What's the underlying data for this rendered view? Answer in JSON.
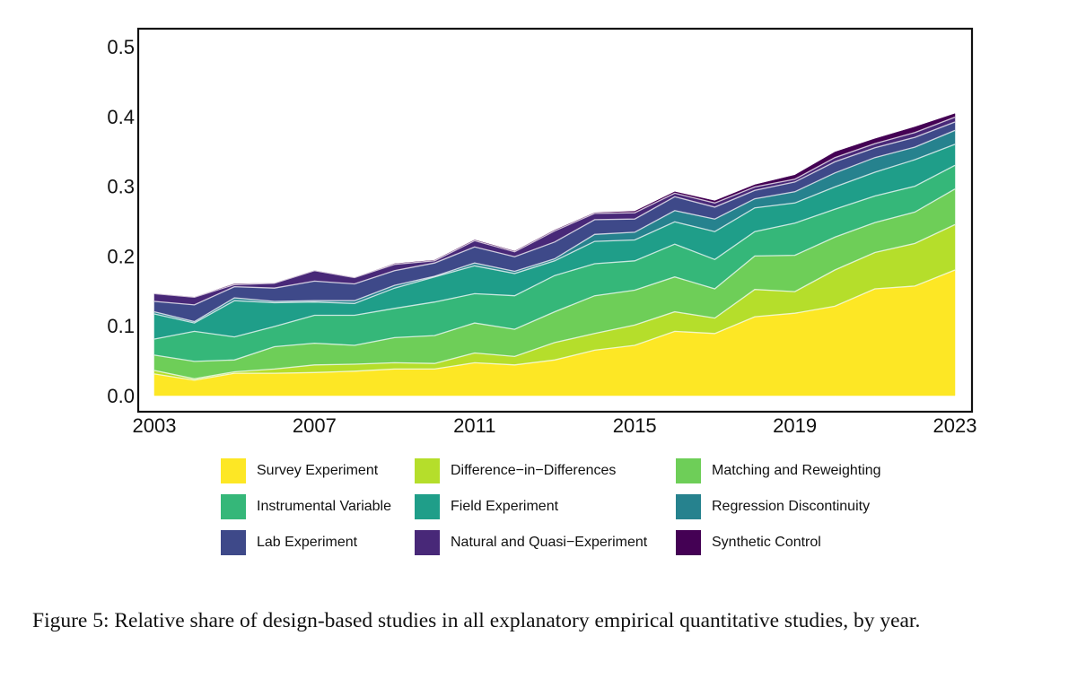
{
  "chart_data": {
    "type": "area",
    "stacked": true,
    "title": "",
    "xlabel": "",
    "ylabel": "",
    "x": [
      2003,
      2004,
      2005,
      2006,
      2007,
      2008,
      2009,
      2010,
      2011,
      2012,
      2013,
      2014,
      2015,
      2016,
      2017,
      2018,
      2019,
      2020,
      2021,
      2022,
      2023
    ],
    "xlim": [
      2003,
      2023
    ],
    "ylim": [
      0,
      0.5
    ],
    "x_ticks": [
      2003,
      2007,
      2011,
      2015,
      2019,
      2023
    ],
    "x_tick_labels": [
      "2003",
      "2007",
      "2011",
      "2015",
      "2019",
      "2023"
    ],
    "y_ticks": [
      0.0,
      0.1,
      0.2,
      0.3,
      0.4,
      0.5
    ],
    "y_tick_labels": [
      "0.0",
      "0.1",
      "0.2",
      "0.3",
      "0.4",
      "0.5"
    ],
    "grid": false,
    "legend_position": "bottom",
    "series": [
      {
        "name": "Survey Experiment",
        "color": "#FDE725",
        "values": [
          0.031,
          0.022,
          0.032,
          0.032,
          0.033,
          0.035,
          0.038,
          0.038,
          0.047,
          0.044,
          0.051,
          0.065,
          0.072,
          0.092,
          0.089,
          0.113,
          0.118,
          0.128,
          0.153,
          0.157,
          0.18
        ]
      },
      {
        "name": "Difference-in-Differences",
        "color": "#B5DE2B",
        "values": [
          0.005,
          0.002,
          0.002,
          0.006,
          0.011,
          0.01,
          0.009,
          0.008,
          0.014,
          0.012,
          0.025,
          0.024,
          0.029,
          0.028,
          0.022,
          0.039,
          0.031,
          0.052,
          0.052,
          0.061,
          0.065
        ]
      },
      {
        "name": "Matching and Reweighting",
        "color": "#6ECE58",
        "values": [
          0.022,
          0.025,
          0.017,
          0.032,
          0.031,
          0.027,
          0.036,
          0.04,
          0.043,
          0.039,
          0.044,
          0.054,
          0.05,
          0.05,
          0.042,
          0.048,
          0.052,
          0.047,
          0.043,
          0.045,
          0.051
        ]
      },
      {
        "name": "Instrumental Variable",
        "color": "#35B779",
        "values": [
          0.023,
          0.043,
          0.033,
          0.029,
          0.04,
          0.043,
          0.042,
          0.048,
          0.042,
          0.048,
          0.052,
          0.046,
          0.042,
          0.047,
          0.042,
          0.035,
          0.046,
          0.04,
          0.038,
          0.037,
          0.034
        ]
      },
      {
        "name": "Field Experiment",
        "color": "#1F9E89",
        "values": [
          0.036,
          0.012,
          0.052,
          0.034,
          0.019,
          0.017,
          0.029,
          0.036,
          0.04,
          0.032,
          0.021,
          0.032,
          0.03,
          0.032,
          0.04,
          0.034,
          0.029,
          0.032,
          0.034,
          0.038,
          0.03
        ]
      },
      {
        "name": "Regression Discontinuity",
        "color": "#26828E",
        "values": [
          0.003,
          0.002,
          0.004,
          0.002,
          0.002,
          0.004,
          0.004,
          0.001,
          0.004,
          0.003,
          0.003,
          0.01,
          0.011,
          0.016,
          0.018,
          0.013,
          0.016,
          0.02,
          0.021,
          0.018,
          0.02
        ]
      },
      {
        "name": "Lab Experiment",
        "color": "#3E4989",
        "values": [
          0.015,
          0.024,
          0.016,
          0.019,
          0.028,
          0.024,
          0.021,
          0.019,
          0.023,
          0.021,
          0.024,
          0.021,
          0.019,
          0.02,
          0.017,
          0.012,
          0.014,
          0.016,
          0.014,
          0.014,
          0.012
        ]
      },
      {
        "name": "Natural and Quasi-Experiment",
        "color": "#482878",
        "values": [
          0.011,
          0.011,
          0.003,
          0.007,
          0.015,
          0.009,
          0.009,
          0.003,
          0.009,
          0.007,
          0.016,
          0.009,
          0.009,
          0.005,
          0.006,
          0.005,
          0.004,
          0.006,
          0.006,
          0.007,
          0.007
        ]
      },
      {
        "name": "Synthetic Control",
        "color": "#440154",
        "values": [
          0.0,
          0.0,
          0.001,
          0.0,
          0.0,
          0.0,
          0.001,
          0.001,
          0.001,
          0.001,
          0.001,
          0.001,
          0.002,
          0.002,
          0.003,
          0.003,
          0.006,
          0.008,
          0.007,
          0.008,
          0.005
        ]
      }
    ]
  },
  "legend": {
    "items": [
      {
        "label": "Survey Experiment",
        "color": "#FDE725"
      },
      {
        "label": "Difference−in−Differences",
        "color": "#B5DE2B"
      },
      {
        "label": "Matching and Reweighting",
        "color": "#6ECE58"
      },
      {
        "label": "Instrumental Variable",
        "color": "#35B779"
      },
      {
        "label": "Field Experiment",
        "color": "#1F9E89"
      },
      {
        "label": "Regression Discontinuity",
        "color": "#26828E"
      },
      {
        "label": "Lab Experiment",
        "color": "#3E4989"
      },
      {
        "label": "Natural and Quasi−Experiment",
        "color": "#482878"
      },
      {
        "label": "Synthetic Control",
        "color": "#440154"
      }
    ]
  },
  "caption": {
    "text": "Figure 5:  Relative share of design-based studies in all explanatory empirical quantitative studies, by year."
  }
}
